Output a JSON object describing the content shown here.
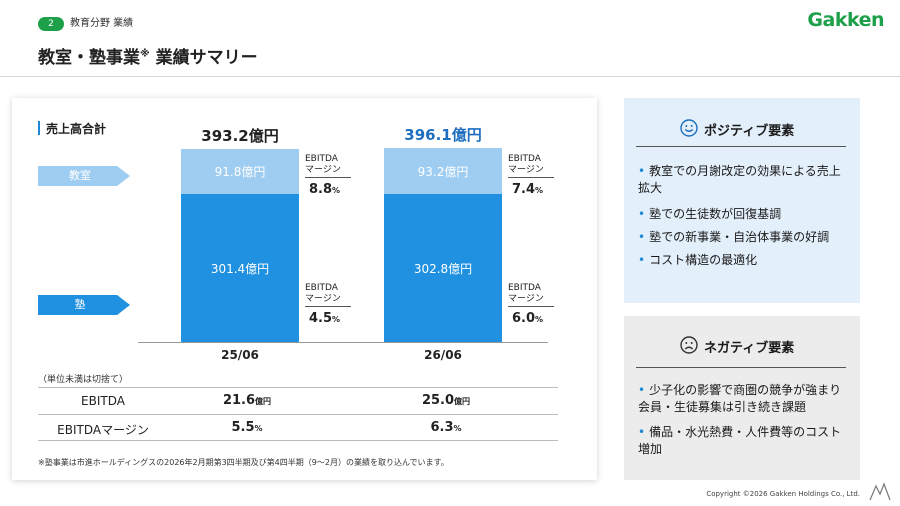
{
  "header": {
    "page_number": "2",
    "section": "教育分野 業績",
    "logo": "Gakken",
    "title": "教室・塾事業",
    "title_sup": "※",
    "title_suffix": " 業績サマリー"
  },
  "card_title": "売上高合計",
  "segments": {
    "room": "教室",
    "juku": "塾"
  },
  "chart_data": {
    "type": "bar",
    "stacked": true,
    "categories": [
      "25/06",
      "26/06"
    ],
    "series": [
      {
        "name": "塾",
        "values": [
          301.4,
          302.8
        ],
        "labels": [
          "301.4億円",
          "302.8億円"
        ],
        "color": "#2090e0"
      },
      {
        "name": "教室",
        "values": [
          91.8,
          93.2
        ],
        "labels": [
          "91.8億円",
          "93.2億円"
        ],
        "color": "#9fcdf1"
      }
    ],
    "totals": [
      393.2,
      396.1
    ],
    "total_labels": [
      "393.2億円",
      "396.1億円"
    ],
    "total_colors": [
      "#222222",
      "#1e6fc0"
    ],
    "margin_title_1": "EBITDA",
    "margin_title_2": "マージン",
    "margins": {
      "room": [
        {
          "value": "8.8",
          "unit": "%"
        },
        {
          "value": "7.4",
          "unit": "%"
        }
      ],
      "juku": [
        {
          "value": "4.5",
          "unit": "%"
        },
        {
          "value": "6.0",
          "unit": "%"
        }
      ]
    },
    "ylim": [
      0,
      400
    ]
  },
  "table": {
    "unit_note": "（単位未満は切捨て）",
    "rows": [
      {
        "label": "EBITDA",
        "values": [
          "21.6",
          "25.0"
        ],
        "unit": "億円"
      },
      {
        "label": "EBITDAマージン",
        "values": [
          "5.5",
          "6.3"
        ],
        "unit": "%"
      }
    ]
  },
  "footnote": "※塾事業は市進ホールディングスの2026年2月期第3四半期及び第4四半期（9～2月）の業績を取り込んでいます。",
  "positive": {
    "title": "ポジティブ要素",
    "icon": "smile-icon",
    "items": [
      "教室での月謝改定の効果による売上拡大",
      "塾での生徒数が回復基調",
      "塾での新事業・自治体事業の好調",
      "コスト構造の最適化"
    ]
  },
  "negative": {
    "title": "ネガティブ要素",
    "icon": "frown-icon",
    "items": [
      "少子化の影響で商圏の競争が強まり会員・生徒募集は引き続き課題",
      "備品・水光熱費・人件費等のコスト増加"
    ]
  },
  "copyright": "Copyright ©2026 Gakken Holdings Co., Ltd."
}
